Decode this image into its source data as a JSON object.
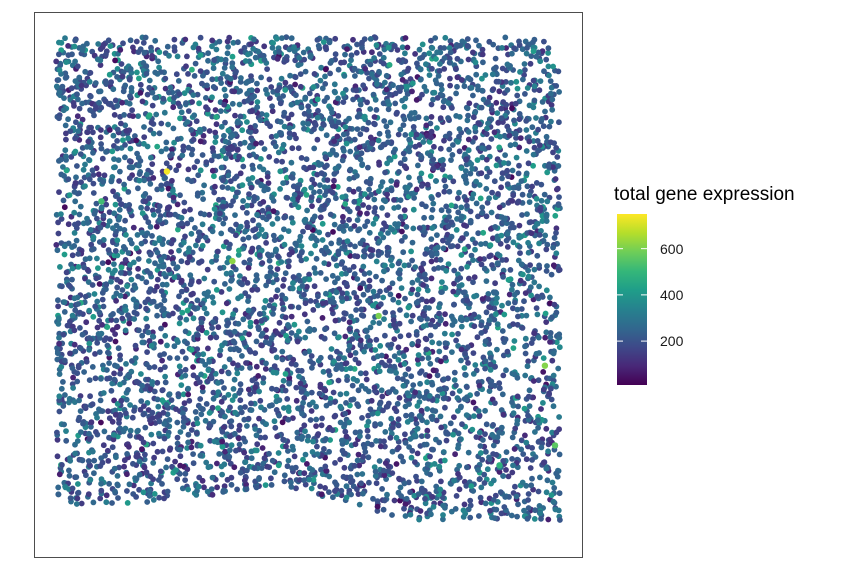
{
  "chart_data": {
    "type": "scatter",
    "title": "",
    "xlabel": "",
    "ylabel": "",
    "point_count_approx": 6000,
    "color_variable": "total gene expression",
    "color_scale": {
      "palette": "viridis",
      "range": [
        10,
        750
      ],
      "ticks": [
        200,
        400,
        600
      ],
      "stops": [
        "#440154",
        "#482878",
        "#3e4989",
        "#31688e",
        "#26828e",
        "#1f9e89",
        "#35b779",
        "#6ece58",
        "#b5de2b",
        "#fde725"
      ]
    },
    "value_distribution": "mostly 100–350, median ≈ 220, a few outliers up to ≈ 740",
    "highlighted_points": [
      {
        "x": 0.22,
        "y": 0.73,
        "value": 740
      },
      {
        "x": 0.35,
        "y": 0.55,
        "value": 620
      },
      {
        "x": 0.64,
        "y": 0.44,
        "value": 600
      },
      {
        "x": 0.97,
        "y": 0.34,
        "value": 610
      },
      {
        "x": 0.99,
        "y": 0.18,
        "value": 560
      },
      {
        "x": 0.09,
        "y": 0.67,
        "value": 520
      },
      {
        "x": 0.88,
        "y": 0.14,
        "value": 480
      }
    ],
    "grid": false,
    "legend_position": "right"
  },
  "legend": {
    "title": "total gene expression",
    "tick_labels": [
      "200",
      "400",
      "600"
    ]
  }
}
